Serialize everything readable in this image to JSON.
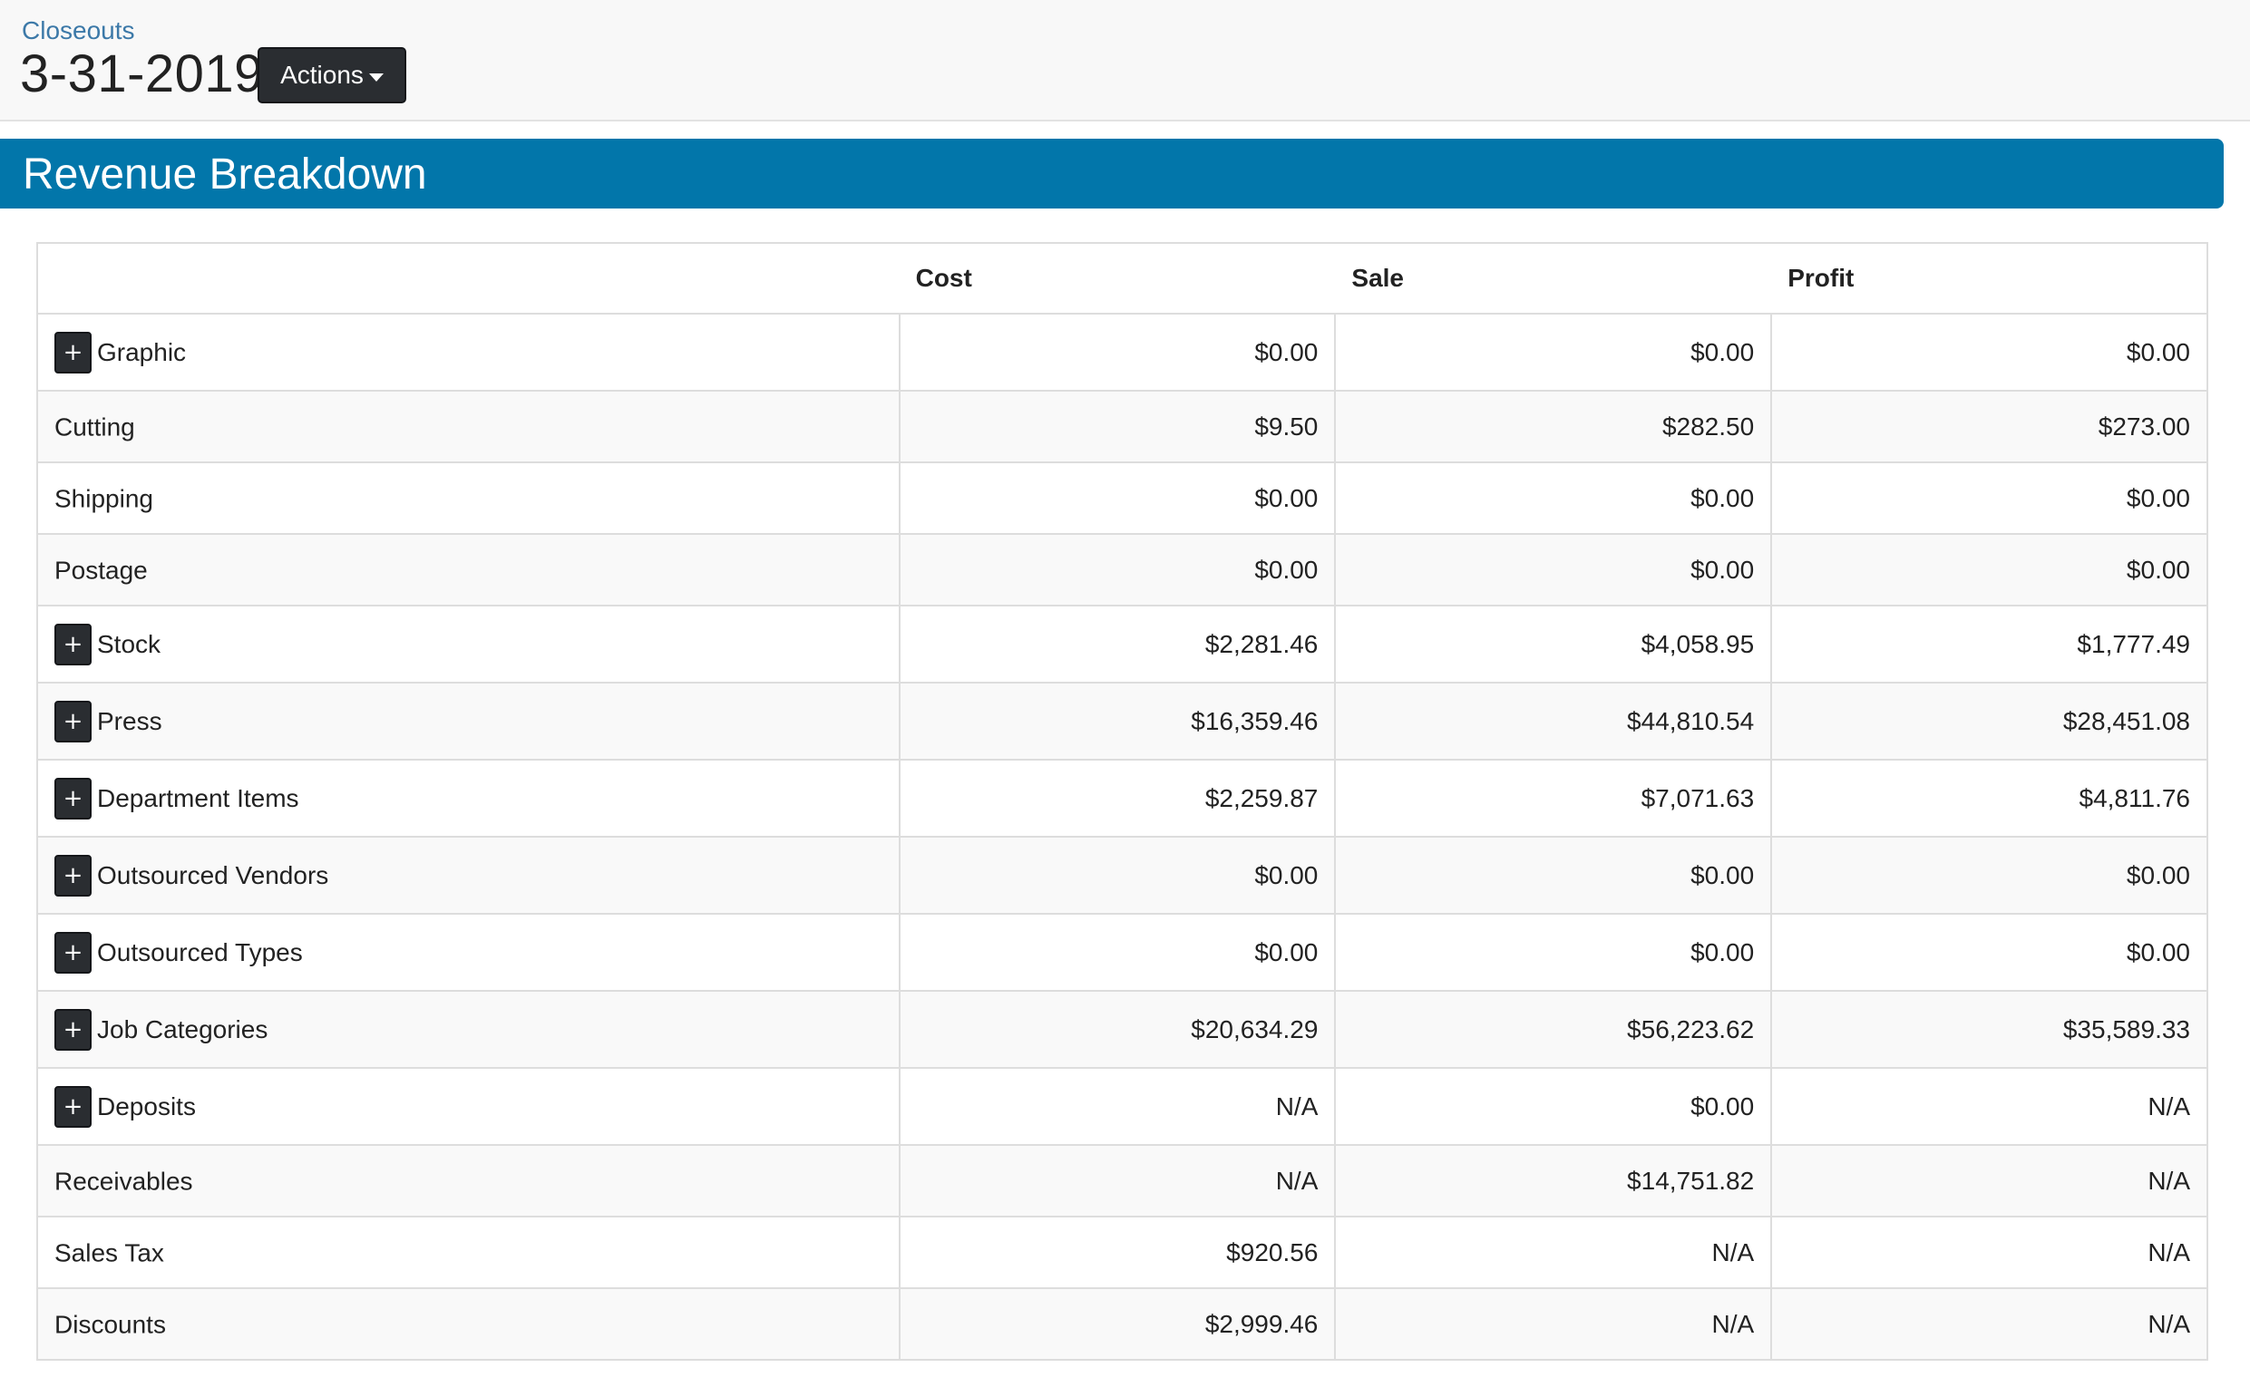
{
  "header": {
    "breadcrumb": "Closeouts",
    "title": "3-31-2019",
    "actions_label": "Actions"
  },
  "section": {
    "title": "Revenue Breakdown"
  },
  "table": {
    "columns": [
      "",
      "Cost",
      "Sale",
      "Profit"
    ],
    "rows": [
      {
        "label": "Graphic",
        "expandable": true,
        "cost": "$0.00",
        "sale": "$0.00",
        "profit": "$0.00"
      },
      {
        "label": "Cutting",
        "expandable": false,
        "cost": "$9.50",
        "sale": "$282.50",
        "profit": "$273.00"
      },
      {
        "label": "Shipping",
        "expandable": false,
        "cost": "$0.00",
        "sale": "$0.00",
        "profit": "$0.00"
      },
      {
        "label": "Postage",
        "expandable": false,
        "cost": "$0.00",
        "sale": "$0.00",
        "profit": "$0.00"
      },
      {
        "label": "Stock",
        "expandable": true,
        "cost": "$2,281.46",
        "sale": "$4,058.95",
        "profit": "$1,777.49"
      },
      {
        "label": "Press",
        "expandable": true,
        "cost": "$16,359.46",
        "sale": "$44,810.54",
        "profit": "$28,451.08"
      },
      {
        "label": "Department Items",
        "expandable": true,
        "cost": "$2,259.87",
        "sale": "$7,071.63",
        "profit": "$4,811.76"
      },
      {
        "label": "Outsourced Vendors",
        "expandable": true,
        "cost": "$0.00",
        "sale": "$0.00",
        "profit": "$0.00"
      },
      {
        "label": "Outsourced Types",
        "expandable": true,
        "cost": "$0.00",
        "sale": "$0.00",
        "profit": "$0.00"
      },
      {
        "label": "Job Categories",
        "expandable": true,
        "cost": "$20,634.29",
        "sale": "$56,223.62",
        "profit": "$35,589.33"
      },
      {
        "label": "Deposits",
        "expandable": true,
        "cost": "N/A",
        "sale": "$0.00",
        "profit": "N/A"
      },
      {
        "label": "Receivables",
        "expandable": false,
        "cost": "N/A",
        "sale": "$14,751.82",
        "profit": "N/A"
      },
      {
        "label": "Sales Tax",
        "expandable": false,
        "cost": "$920.56",
        "sale": "N/A",
        "profit": "N/A"
      },
      {
        "label": "Discounts",
        "expandable": false,
        "cost": "$2,999.46",
        "sale": "N/A",
        "profit": "N/A"
      }
    ],
    "expand_symbol": "+"
  },
  "colors": {
    "accent": "#0276aa",
    "link": "#3c79a8",
    "button_dark": "#2a2d31"
  },
  "icons": {
    "expand": "plus-icon",
    "dropdown": "caret-down-icon"
  }
}
